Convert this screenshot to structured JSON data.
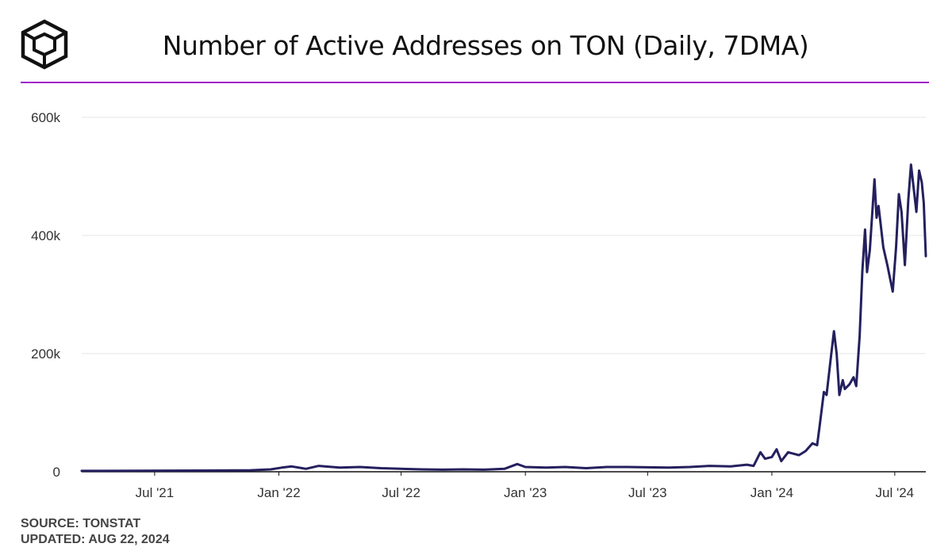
{
  "header": {
    "title": "Number of Active Addresses on TON (Daily, 7DMA)",
    "logo_icon": "cube-logo-icon"
  },
  "footer": {
    "source": "SOURCE: TONSTAT",
    "updated": "UPDATED: AUG 22, 2024"
  },
  "colors": {
    "line": "#24205e",
    "accent_rule": "#a020c8",
    "grid": "#e6e6e6"
  },
  "chart_data": {
    "type": "line",
    "title": "Number of Active Addresses on TON (Daily, 7DMA)",
    "xlabel": "",
    "ylabel": "",
    "ylim": [
      0,
      600000
    ],
    "grid": true,
    "legend": "none",
    "x_tick_labels": [
      "Jul '21",
      "Jan '22",
      "Jul '22",
      "Jan '23",
      "Jul '23",
      "Jan '24",
      "Jul '24"
    ],
    "y_tick_labels": [
      "0",
      "200k",
      "400k",
      "600k"
    ],
    "y_ticks": [
      0,
      200000,
      400000,
      600000
    ],
    "series": [
      {
        "name": "",
        "values": [
          [
            "2021-03-15",
            1500
          ],
          [
            "2021-06-01",
            1800
          ],
          [
            "2021-09-01",
            2000
          ],
          [
            "2021-11-20",
            2500
          ],
          [
            "2021-12-20",
            4000
          ],
          [
            "2022-01-05",
            7000
          ],
          [
            "2022-01-20",
            9000
          ],
          [
            "2022-02-10",
            5000
          ],
          [
            "2022-03-01",
            10000
          ],
          [
            "2022-04-01",
            7000
          ],
          [
            "2022-05-01",
            8000
          ],
          [
            "2022-06-01",
            6000
          ],
          [
            "2022-07-01",
            5000
          ],
          [
            "2022-08-01",
            4000
          ],
          [
            "2022-09-01",
            3500
          ],
          [
            "2022-10-01",
            4000
          ],
          [
            "2022-11-01",
            3500
          ],
          [
            "2022-12-01",
            5000
          ],
          [
            "2022-12-20",
            13000
          ],
          [
            "2023-01-01",
            8000
          ],
          [
            "2023-02-01",
            7000
          ],
          [
            "2023-03-01",
            8000
          ],
          [
            "2023-04-01",
            6000
          ],
          [
            "2023-05-01",
            8000
          ],
          [
            "2023-06-01",
            8000
          ],
          [
            "2023-07-01",
            7500
          ],
          [
            "2023-08-01",
            7000
          ],
          [
            "2023-09-01",
            8000
          ],
          [
            "2023-10-01",
            10000
          ],
          [
            "2023-11-01",
            9000
          ],
          [
            "2023-11-25",
            12000
          ],
          [
            "2023-12-05",
            10000
          ],
          [
            "2023-12-15",
            33000
          ],
          [
            "2023-12-22",
            22000
          ],
          [
            "2024-01-01",
            25000
          ],
          [
            "2024-01-08",
            38000
          ],
          [
            "2024-01-15",
            18000
          ],
          [
            "2024-01-25",
            33000
          ],
          [
            "2024-02-10",
            28000
          ],
          [
            "2024-02-20",
            35000
          ],
          [
            "2024-03-01",
            48000
          ],
          [
            "2024-03-08",
            45000
          ],
          [
            "2024-03-12",
            80000
          ],
          [
            "2024-03-18",
            135000
          ],
          [
            "2024-03-22",
            130000
          ],
          [
            "2024-03-28",
            190000
          ],
          [
            "2024-04-02",
            238000
          ],
          [
            "2024-04-06",
            200000
          ],
          [
            "2024-04-10",
            130000
          ],
          [
            "2024-04-15",
            155000
          ],
          [
            "2024-04-18",
            140000
          ],
          [
            "2024-04-25",
            148000
          ],
          [
            "2024-05-01",
            160000
          ],
          [
            "2024-05-05",
            145000
          ],
          [
            "2024-05-10",
            230000
          ],
          [
            "2024-05-14",
            340000
          ],
          [
            "2024-05-18",
            410000
          ],
          [
            "2024-05-21",
            338000
          ],
          [
            "2024-05-25",
            375000
          ],
          [
            "2024-06-01",
            495000
          ],
          [
            "2024-06-04",
            430000
          ],
          [
            "2024-06-07",
            450000
          ],
          [
            "2024-06-10",
            420000
          ],
          [
            "2024-06-14",
            380000
          ],
          [
            "2024-06-20",
            350000
          ],
          [
            "2024-06-28",
            305000
          ],
          [
            "2024-07-03",
            380000
          ],
          [
            "2024-07-07",
            470000
          ],
          [
            "2024-07-11",
            440000
          ],
          [
            "2024-07-16",
            350000
          ],
          [
            "2024-07-21",
            460000
          ],
          [
            "2024-07-25",
            520000
          ],
          [
            "2024-07-29",
            480000
          ],
          [
            "2024-08-02",
            440000
          ],
          [
            "2024-08-06",
            510000
          ],
          [
            "2024-08-10",
            490000
          ],
          [
            "2024-08-13",
            455000
          ],
          [
            "2024-08-16",
            365000
          ]
        ]
      }
    ]
  }
}
